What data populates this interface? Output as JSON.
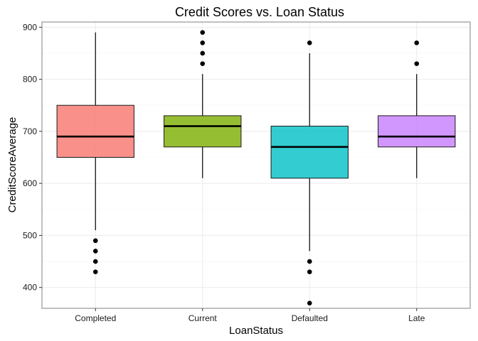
{
  "chart_data": {
    "type": "boxplot",
    "title": "Credit Scores vs. Loan Status",
    "xlabel": "LoanStatus",
    "ylabel": "CreditScoreAverage",
    "ylim": [
      360,
      910
    ],
    "yticks": [
      400,
      500,
      600,
      700,
      800,
      900
    ],
    "grid": true,
    "categories": [
      "Completed",
      "Current",
      "Defaulted",
      "Late"
    ],
    "colors": [
      "#f8766d",
      "#7cae00",
      "#00bfc4",
      "#c77cff"
    ],
    "box_opacity": 0.8,
    "boxes": [
      {
        "category": "Completed",
        "min": 510,
        "q1": 650,
        "median": 690,
        "q3": 750,
        "max": 890,
        "outliers": [
          490,
          470,
          450,
          430
        ]
      },
      {
        "category": "Current",
        "min": 610,
        "q1": 670,
        "median": 710,
        "q3": 730,
        "max": 810,
        "outliers": [
          830,
          850,
          870,
          890
        ]
      },
      {
        "category": "Defaulted",
        "min": 470,
        "q1": 610,
        "median": 670,
        "q3": 710,
        "max": 850,
        "outliers": [
          870,
          450,
          430,
          370
        ]
      },
      {
        "category": "Late",
        "min": 610,
        "q1": 670,
        "median": 690,
        "q3": 730,
        "max": 810,
        "outliers": [
          830,
          870
        ]
      }
    ]
  }
}
